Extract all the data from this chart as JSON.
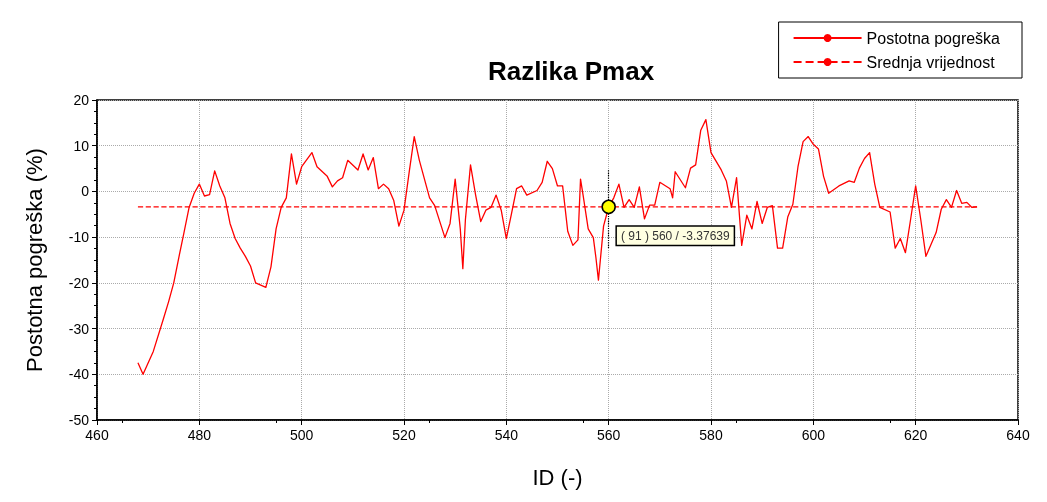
{
  "chart_data": {
    "type": "line",
    "title": "Razlika Pmax",
    "xlabel": "ID (-)",
    "ylabel": "Postotna pogreška (%)",
    "xlim": [
      460,
      640
    ],
    "xticks": [
      460,
      480,
      500,
      520,
      540,
      560,
      580,
      600,
      620,
      640
    ],
    "ylim": [
      -50,
      20
    ],
    "yticks": [
      -50,
      -40,
      -30,
      -20,
      -10,
      0,
      10,
      20
    ],
    "grid": true,
    "legend": "top right",
    "marker": "none",
    "annotations": [
      {
        "text": "( 91 ) 560 / -3.37639",
        "x": 560,
        "y": -3.37639
      }
    ],
    "series": [
      {
        "name": "Postotna pogreška",
        "color": "#ff0000",
        "line_style": "solid",
        "x": [
          468,
          469,
          471,
          473,
          474,
          475,
          476,
          477,
          478,
          479,
          480,
          481,
          482,
          483,
          484,
          485,
          486,
          487,
          488,
          489,
          490,
          491,
          493,
          494,
          495,
          496,
          497,
          498,
          499,
          500,
          502,
          503,
          505,
          506,
          507,
          508,
          509,
          511,
          512,
          513,
          514,
          515,
          516,
          517,
          518,
          519,
          520,
          521,
          522,
          523,
          525,
          526,
          528,
          529,
          530,
          531,
          531.5,
          532,
          533,
          534,
          535,
          536,
          537,
          538,
          539,
          540,
          541,
          542,
          543,
          544,
          546,
          547,
          548,
          549,
          550,
          551,
          552,
          553,
          554,
          554.5,
          555,
          556,
          557,
          557.5,
          558,
          559,
          560,
          561,
          562,
          563,
          564,
          565,
          566,
          567,
          568,
          569,
          570,
          572,
          572.5,
          573,
          575,
          576,
          577,
          578,
          579,
          580,
          582,
          583,
          584,
          585,
          586,
          587,
          588,
          589,
          590,
          591,
          592,
          593,
          594,
          595,
          596,
          597,
          598,
          599,
          600,
          601,
          602,
          603,
          605,
          607,
          608,
          609,
          610,
          611,
          612,
          613,
          615,
          616,
          617,
          618,
          619,
          620,
          621,
          622,
          624,
          625,
          626,
          627,
          628,
          629,
          630,
          631,
          632
        ],
        "values": [
          -37.5,
          -40,
          -35,
          -27.8,
          -24.1,
          -20,
          -14.4,
          -9,
          -3.5,
          -0.4,
          1.6,
          -1,
          -0.7,
          4.5,
          1.2,
          -1.4,
          -7,
          -10.3,
          -12.4,
          -14.2,
          -16.3,
          -20,
          -21,
          -16.5,
          -8.2,
          -3.5,
          -1.4,
          8.2,
          1.6,
          5.4,
          8.5,
          5.4,
          3.3,
          1,
          2.3,
          3,
          6.8,
          4.7,
          8.2,
          4.7,
          7.4,
          0.6,
          1.6,
          0.6,
          -2,
          -7.6,
          -4.1,
          4.1,
          12,
          6.8,
          -1.4,
          -3.1,
          -10.1,
          -7,
          2.7,
          -8.2,
          -16.9,
          -6.2,
          5.8,
          -0.8,
          -6.6,
          -4.1,
          -3.5,
          -0.8,
          -4.1,
          -10.3,
          -4.9,
          0.6,
          1.2,
          -0.8,
          0.2,
          2,
          6.6,
          5,
          1.2,
          1.2,
          -8.7,
          -11.8,
          -10.6,
          2.7,
          -0.8,
          -8.2,
          -10.1,
          -14.4,
          -19.4,
          -7.6,
          -3.4,
          -1.4,
          1.6,
          -3.5,
          -1.8,
          -3.5,
          1,
          -6,
          -3,
          -3,
          2,
          0.6,
          -1.4,
          4.3,
          0.8,
          5.1,
          5.8,
          13.4,
          15.7,
          8.5,
          4.7,
          2.3,
          -3.5,
          3,
          -11.8,
          -5.2,
          -8.2,
          -2.2,
          -7,
          -3.5,
          -3.1,
          -12.4,
          -12.4,
          -5.6,
          -2.8,
          5.4,
          10.9,
          12,
          10.3,
          9.3,
          3.3,
          -0.4,
          1.2,
          2.3,
          2,
          5.1,
          7.2,
          8.5,
          1.6,
          -3.5,
          -4.5,
          -12.4,
          -10.3,
          -13.4,
          -6.2,
          1.2,
          -6.2,
          -14.2,
          -9,
          -3.9,
          -1.8,
          -3.5,
          0.2,
          -2.6,
          -2.4,
          -3.5,
          -3.4
        ]
      },
      {
        "name": "Srednja vrijednost",
        "color": "#ff0000",
        "line_style": "dashed",
        "x": [
          468,
          632
        ],
        "values": [
          -3.4,
          -3.4
        ]
      }
    ]
  }
}
